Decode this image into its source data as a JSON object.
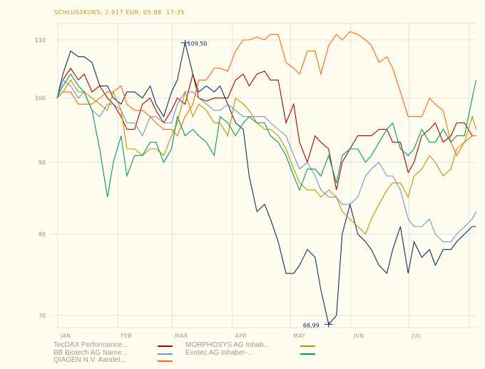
{
  "header": {
    "title": "SCHLUSSKURS: 2,917 EUR, 05.08. 17:35"
  },
  "chart_data": {
    "type": "line",
    "yscale": "log",
    "ylim": [
      68,
      114
    ],
    "yticks": [
      "110",
      "100",
      "90",
      "80",
      "70"
    ],
    "ytick_values": [
      110,
      100,
      90,
      80,
      70
    ],
    "xticks": [
      "JAN",
      "FEB",
      "MAR",
      "APR",
      "MAY",
      "JUN",
      "JUL"
    ],
    "xtick_dates": [
      "01-01",
      "02-01",
      "03-01",
      "04-01",
      "05-01",
      "06-01",
      "07-01",
      "08-01"
    ],
    "grid": true,
    "legend_placement": "bottom",
    "annotations": [
      {
        "text": "109,50",
        "date": "03-08",
        "value": 109.5
      },
      {
        "text": "68,99",
        "date": "05-21",
        "value": 68.99
      }
    ],
    "x": [
      "01-01",
      "01-04",
      "01-08",
      "01-12",
      "01-15",
      "01-19",
      "01-23",
      "01-27",
      "01-30",
      "02-03",
      "02-06",
      "02-10",
      "02-14",
      "02-18",
      "02-21",
      "02-25",
      "03-01",
      "03-04",
      "03-08",
      "03-12",
      "03-15",
      "03-19",
      "03-23",
      "03-26",
      "03-30",
      "04-03",
      "04-07",
      "04-10",
      "04-14",
      "04-18",
      "04-21",
      "04-25",
      "04-29",
      "05-03",
      "05-06",
      "05-10",
      "05-14",
      "05-17",
      "05-21",
      "05-25",
      "05-28",
      "06-01",
      "06-05",
      "06-09",
      "06-12",
      "06-16",
      "06-20",
      "06-23",
      "06-27",
      "07-01",
      "07-04",
      "07-08",
      "07-12",
      "07-15",
      "07-19",
      "07-23",
      "07-26",
      "07-30",
      "08-03",
      "08-05"
    ],
    "series": [
      {
        "color": "#0a2f63",
        "values": [
          100,
          104,
          108,
          107,
          107,
          106,
          102,
          102,
          100,
          99,
          101,
          101,
          100,
          102,
          99,
          97,
          101,
          103,
          109.5,
          104,
          101,
          102,
          101,
          102,
          99,
          96,
          95,
          88,
          83,
          84,
          82,
          79,
          75,
          75,
          76,
          78,
          77,
          73,
          69,
          70,
          80,
          84,
          80,
          79,
          78,
          76,
          75,
          78,
          81,
          75,
          79,
          77,
          78,
          76,
          78,
          78,
          79,
          80,
          81,
          81
        ]
      },
      {
        "name": "TecDAX Performance...",
        "color": "#aa0000",
        "values": [
          100,
          103,
          105,
          103,
          104,
          101,
          102,
          100,
          99,
          97,
          95,
          95,
          99,
          100,
          98,
          96,
          98,
          100,
          99,
          104,
          100,
          99.5,
          100,
          100,
          100,
          103,
          104,
          102,
          104,
          104.5,
          103,
          103,
          96,
          99,
          93,
          90,
          94,
          93,
          92,
          86,
          90,
          92,
          94,
          94,
          94,
          95,
          95,
          93,
          93,
          88.5,
          90,
          94,
          95,
          96,
          93,
          94,
          96,
          96,
          94,
          94
        ]
      },
      {
        "name": "BB Biotech AG Name...",
        "color": "#6699cc",
        "values": [
          100,
          103,
          102,
          100,
          101,
          98,
          97,
          99,
          99,
          98,
          96,
          96,
          94,
          97,
          97,
          96,
          96,
          99,
          101,
          101,
          100,
          99,
          98,
          98,
          99,
          98,
          97,
          97,
          97,
          97,
          96,
          95,
          94,
          91,
          89,
          90,
          88,
          86,
          85,
          85,
          84,
          84,
          85,
          88,
          89,
          90,
          88,
          88,
          86,
          82,
          81,
          81,
          82,
          80,
          79,
          79,
          80,
          81,
          82,
          83
        ]
      },
      {
        "name": "QIAGEN N.V. Aandel...",
        "color": "#ff6600",
        "values": [
          100,
          101,
          101,
          99,
          99,
          99,
          100,
          101,
          101,
          102,
          99,
          98,
          98,
          97,
          96,
          95,
          95,
          94,
          97,
          99,
          103,
          103,
          105,
          105,
          104.5,
          108,
          110,
          110,
          110.5,
          110,
          111,
          111,
          106,
          105,
          104,
          108,
          108,
          104,
          109,
          111,
          110,
          111.5,
          111,
          110,
          109,
          106,
          107,
          105,
          101,
          97,
          97,
          97,
          100,
          99,
          98,
          93,
          91,
          93,
          94,
          94
        ]
      },
      {
        "name": "MORPHOSYS AG Inhab...",
        "color": "#c09000",
        "values": [
          100,
          101,
          103,
          101,
          101,
          100,
          99,
          98,
          101,
          98,
          92,
          92,
          91,
          92,
          92,
          91,
          94,
          96,
          101,
          97,
          99,
          98,
          96,
          96,
          94,
          100,
          99,
          98,
          96,
          95,
          95,
          94,
          92,
          89,
          87,
          86,
          86,
          85,
          86,
          85,
          83,
          82,
          81,
          80,
          82,
          84,
          86,
          87,
          87,
          85,
          88,
          89,
          91,
          90,
          88,
          89,
          92,
          93,
          97,
          95
        ]
      },
      {
        "name": "Evotec AG Inhaber-...",
        "color": "#009966",
        "values": [
          100,
          102,
          104,
          102,
          101,
          98,
          92,
          85,
          90,
          94,
          88,
          91,
          91,
          93,
          93,
          90,
          92,
          97,
          94,
          95,
          94,
          93,
          91,
          97,
          96,
          94,
          96,
          97,
          96,
          96,
          94,
          93,
          91,
          88,
          86,
          89,
          89,
          88,
          91,
          87,
          91,
          92,
          92,
          90,
          91,
          93,
          95,
          96,
          92,
          91,
          92,
          95,
          93,
          93,
          95,
          93,
          94,
          94,
          100,
          103
        ]
      }
    ]
  }
}
